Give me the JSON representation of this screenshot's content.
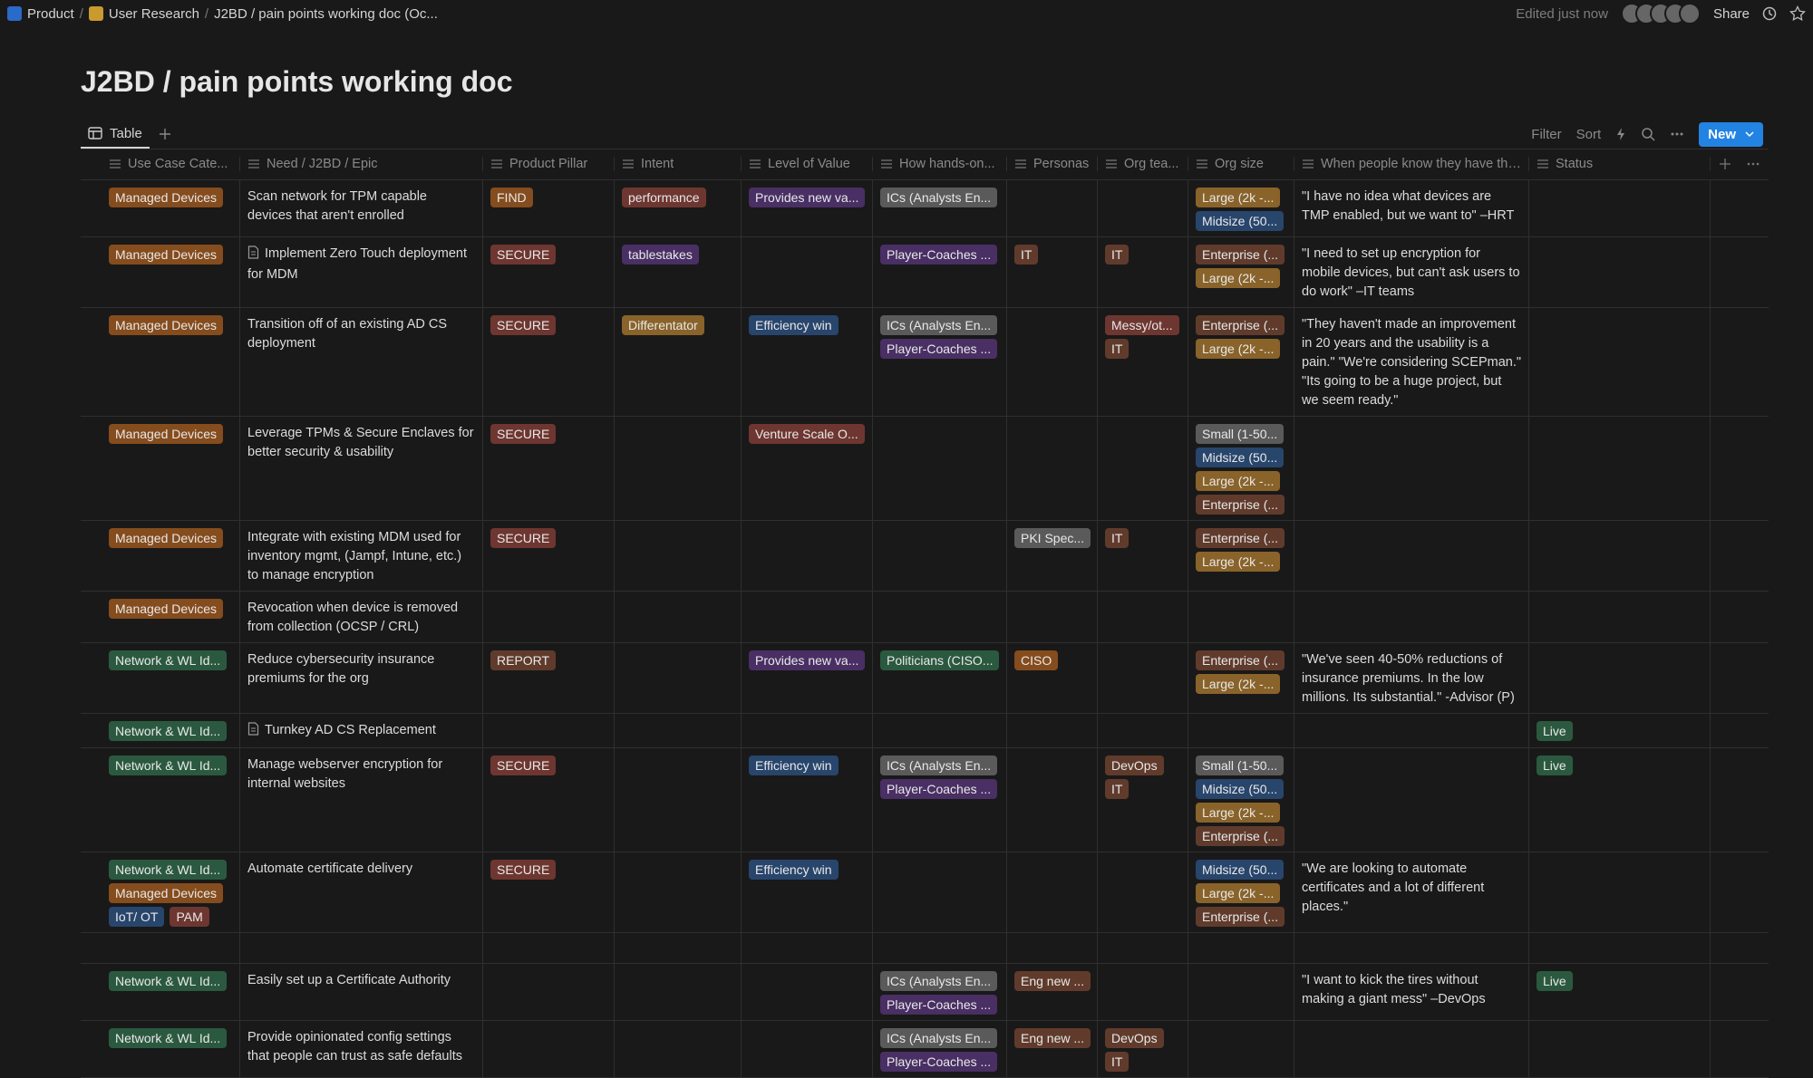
{
  "breadcrumb": [
    "Product",
    "User Research",
    "J2BD / pain points working doc (Oc..."
  ],
  "edited": "Edited just now",
  "share": "Share",
  "title": "J2BD / pain points working doc",
  "view_tab": "Table",
  "toolbar": {
    "filter": "Filter",
    "sort": "Sort",
    "new": "New"
  },
  "table": {
    "columns": [
      {
        "label": "Use Case Cate...",
        "width": 153
      },
      {
        "label": "Need / J2BD / Epic",
        "width": 268
      },
      {
        "label": "Product Pillar",
        "width": 145
      },
      {
        "label": "Intent",
        "width": 140
      },
      {
        "label": "Level of Value",
        "width": 145
      },
      {
        "label": "How hands-on...",
        "width": 148
      },
      {
        "label": "Personas",
        "width": 100
      },
      {
        "label": "Org tea...",
        "width": 100
      },
      {
        "label": "Org size",
        "width": 117
      },
      {
        "label": "When people know they have thi...",
        "width": 259
      },
      {
        "label": "Status",
        "width": 200
      }
    ],
    "rows": [
      {
        "cells": [
          [
            {
              "t": "Managed Devices",
              "c": "orange"
            }
          ],
          "Scan network for TPM capable devices that aren't enrolled",
          [
            {
              "t": "FIND",
              "c": "orange"
            }
          ],
          [
            {
              "t": "performance",
              "c": "red"
            }
          ],
          [
            {
              "t": "Provides new va...",
              "c": "purple"
            }
          ],
          [
            {
              "t": "ICs (Analysts En...",
              "c": "gray"
            }
          ],
          [],
          [],
          [
            {
              "t": "Large (2k -...",
              "c": "yellow"
            },
            {
              "t": "Midsize (50...",
              "c": "blue"
            }
          ],
          "\"I have no idea what devices are TMP enabled, but we want to\" –HRT",
          []
        ]
      },
      {
        "doc": true,
        "cells": [
          [
            {
              "t": "Managed Devices",
              "c": "orange"
            }
          ],
          "Implement Zero Touch deployment for MDM",
          [
            {
              "t": "SECURE",
              "c": "red"
            }
          ],
          [
            {
              "t": "tablestakes",
              "c": "purple"
            }
          ],
          [],
          [
            {
              "t": "Player-Coaches ...",
              "c": "purple"
            }
          ],
          [
            {
              "t": "IT",
              "c": "brown"
            }
          ],
          [
            {
              "t": "IT",
              "c": "brown"
            }
          ],
          [
            {
              "t": "Enterprise (...",
              "c": "brown"
            },
            {
              "t": "Large (2k -...",
              "c": "yellow"
            }
          ],
          "\"I need to set up encryption for mobile devices, but can't ask users to do work\" –IT teams",
          []
        ]
      },
      {
        "cells": [
          [
            {
              "t": "Managed Devices",
              "c": "orange"
            }
          ],
          "Transition off of an existing AD CS deployment",
          [
            {
              "t": "SECURE",
              "c": "red"
            }
          ],
          [
            {
              "t": "Differentator",
              "c": "yellow"
            }
          ],
          [
            {
              "t": "Efficiency win",
              "c": "blue"
            }
          ],
          [
            {
              "t": "ICs (Analysts En...",
              "c": "gray"
            },
            {
              "t": "Player-Coaches ...",
              "c": "purple"
            }
          ],
          [],
          [
            {
              "t": "Messy/ot...",
              "c": "red"
            },
            {
              "t": "IT",
              "c": "brown"
            }
          ],
          [
            {
              "t": "Enterprise (...",
              "c": "brown"
            },
            {
              "t": "Large (2k -...",
              "c": "yellow"
            }
          ],
          "\"They haven't made an improvement in 20 years and the usability is a pain.\" \"We're considering SCEPman.\" \"Its going to be a huge project, but we seem ready.\"",
          []
        ]
      },
      {
        "cells": [
          [
            {
              "t": "Managed Devices",
              "c": "orange"
            }
          ],
          "Leverage TPMs & Secure Enclaves for better security & usability",
          [
            {
              "t": "SECURE",
              "c": "red"
            }
          ],
          [],
          [
            {
              "t": "Venture Scale O...",
              "c": "red"
            }
          ],
          [],
          [],
          [],
          [
            {
              "t": "Small (1-50...",
              "c": "gray"
            },
            {
              "t": "Midsize (50...",
              "c": "blue"
            },
            {
              "t": "Large (2k -...",
              "c": "yellow"
            },
            {
              "t": "Enterprise (...",
              "c": "brown"
            }
          ],
          null,
          []
        ]
      },
      {
        "cells": [
          [
            {
              "t": "Managed Devices",
              "c": "orange"
            }
          ],
          "Integrate with existing MDM used for inventory mgmt, (Jampf, Intune, etc.) to manage encryption",
          [
            {
              "t": "SECURE",
              "c": "red"
            }
          ],
          [],
          [],
          [],
          [
            {
              "t": "PKI Spec...",
              "c": "gray"
            }
          ],
          [
            {
              "t": "IT",
              "c": "brown"
            }
          ],
          [
            {
              "t": "Enterprise (...",
              "c": "brown"
            },
            {
              "t": "Large (2k -...",
              "c": "yellow"
            }
          ],
          null,
          []
        ]
      },
      {
        "cells": [
          [
            {
              "t": "Managed Devices",
              "c": "orange"
            }
          ],
          "Revocation when device is removed from collection (OCSP / CRL)",
          [],
          [],
          [],
          [],
          [],
          [],
          [],
          null,
          []
        ]
      },
      {
        "cells": [
          [
            {
              "t": "Network & WL Id...",
              "c": "green"
            }
          ],
          "Reduce cybersecurity insurance premiums for the org",
          [
            {
              "t": "REPORT",
              "c": "brown"
            }
          ],
          [],
          [
            {
              "t": "Provides new va...",
              "c": "purple"
            }
          ],
          [
            {
              "t": "Politicians (CISO...",
              "c": "green"
            }
          ],
          [
            {
              "t": "CISO",
              "c": "orange"
            }
          ],
          [],
          [
            {
              "t": "Enterprise (...",
              "c": "brown"
            },
            {
              "t": "Large (2k -...",
              "c": "yellow"
            }
          ],
          "\"We've seen 40-50% reductions of insurance premiums. In the low millions. Its substantial.\" -Advisor (P)",
          []
        ]
      },
      {
        "doc": true,
        "cells": [
          [
            {
              "t": "Network & WL Id...",
              "c": "green"
            }
          ],
          "Turnkey AD CS Replacement",
          [],
          [],
          [],
          [],
          [],
          [],
          [],
          null,
          [
            {
              "t": "Live",
              "c": "green"
            }
          ]
        ]
      },
      {
        "cells": [
          [
            {
              "t": "Network & WL Id...",
              "c": "green"
            }
          ],
          "Manage webserver encryption for internal websites",
          [
            {
              "t": "SECURE",
              "c": "red"
            }
          ],
          [],
          [
            {
              "t": "Efficiency win",
              "c": "blue"
            }
          ],
          [
            {
              "t": "ICs (Analysts En...",
              "c": "gray"
            },
            {
              "t": "Player-Coaches ...",
              "c": "purple"
            }
          ],
          [],
          [
            {
              "t": "DevOps",
              "c": "brown"
            },
            {
              "t": "IT",
              "c": "brown"
            }
          ],
          [
            {
              "t": "Small (1-50...",
              "c": "gray"
            },
            {
              "t": "Midsize (50...",
              "c": "blue"
            },
            {
              "t": "Large (2k -...",
              "c": "yellow"
            },
            {
              "t": "Enterprise (...",
              "c": "brown"
            }
          ],
          null,
          [
            {
              "t": "Live",
              "c": "green"
            }
          ]
        ]
      },
      {
        "cells": [
          [
            {
              "t": "Network & WL Id...",
              "c": "green"
            },
            {
              "t": "Managed Devices",
              "c": "orange"
            },
            {
              "t": "IoT/ OT",
              "c": "blue"
            },
            {
              "t": "PAM",
              "c": "red"
            }
          ],
          "Automate certificate delivery",
          [
            {
              "t": "SECURE",
              "c": "red"
            }
          ],
          [],
          [
            {
              "t": "Efficiency win",
              "c": "blue"
            }
          ],
          [],
          [],
          [],
          [
            {
              "t": "Midsize (50...",
              "c": "blue"
            },
            {
              "t": "Large (2k -...",
              "c": "yellow"
            },
            {
              "t": "Enterprise (...",
              "c": "brown"
            }
          ],
          "\"We are looking to automate certificates and a lot of different places.\"",
          []
        ]
      },
      {
        "cells": [
          [],
          null,
          [],
          [],
          [],
          [],
          [],
          [],
          [],
          null,
          []
        ]
      },
      {
        "cells": [
          [
            {
              "t": "Network & WL Id...",
              "c": "green"
            }
          ],
          "Easily set up a Certificate Authority",
          [],
          [],
          [],
          [
            {
              "t": "ICs (Analysts En...",
              "c": "gray"
            },
            {
              "t": "Player-Coaches ...",
              "c": "purple"
            }
          ],
          [
            {
              "t": "Eng new ...",
              "c": "brown"
            }
          ],
          [],
          [],
          "\"I want to kick the tires without making a giant mess\" –DevOps",
          [
            {
              "t": "Live",
              "c": "green"
            }
          ]
        ]
      },
      {
        "cells": [
          [
            {
              "t": "Network & WL Id...",
              "c": "green"
            }
          ],
          "Provide opinionated config settings that people can trust as safe defaults",
          [],
          [],
          [],
          [
            {
              "t": "ICs (Analysts En...",
              "c": "gray"
            },
            {
              "t": "Player-Coaches ...",
              "c": "purple"
            }
          ],
          [
            {
              "t": "Eng new ...",
              "c": "brown"
            }
          ],
          [
            {
              "t": "DevOps",
              "c": "brown"
            },
            {
              "t": "IT",
              "c": "brown"
            }
          ],
          [],
          null,
          []
        ]
      }
    ]
  }
}
